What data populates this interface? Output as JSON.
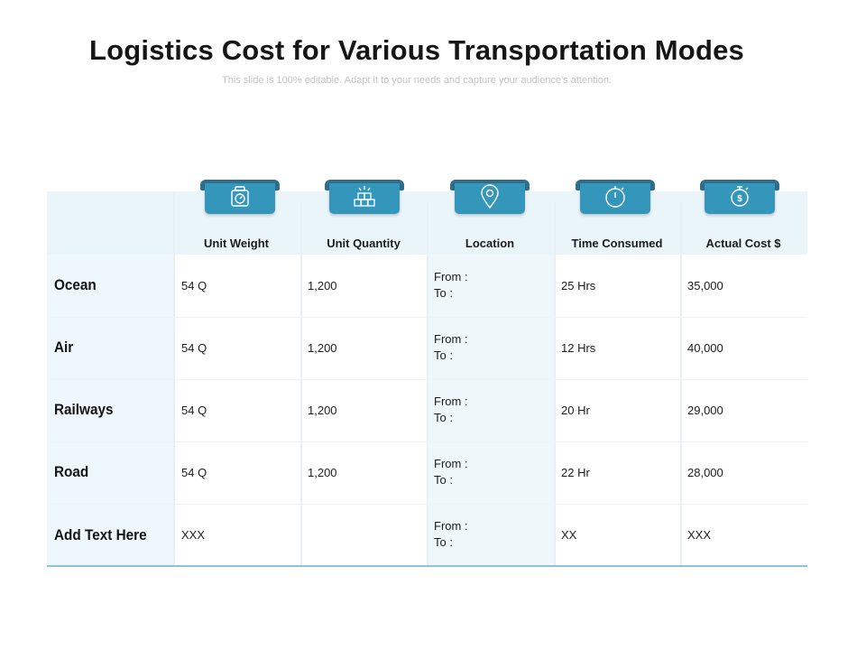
{
  "title": "Logistics Cost for Various Transportation Modes",
  "subtitle": "This slide is 100% editable. Adapt it to your needs and capture your audience's attention.",
  "columns": [
    {
      "label": "Unit Weight",
      "icon": "scale-icon"
    },
    {
      "label": "Unit Quantity",
      "icon": "boxes-icon"
    },
    {
      "label": "Location",
      "icon": "location-pin-icon"
    },
    {
      "label": "Time Consumed",
      "icon": "stopwatch-icon"
    },
    {
      "label": "Actual Cost $",
      "icon": "money-stopwatch-icon"
    }
  ],
  "rows": [
    {
      "label": "Ocean",
      "unit_weight": "54 Q",
      "unit_quantity": "1,200",
      "from": "From :",
      "to": "To :",
      "time": "25 Hrs",
      "cost": "35,000"
    },
    {
      "label": "Air",
      "unit_weight": "54 Q",
      "unit_quantity": "1,200",
      "from": "From :",
      "to": "To :",
      "time": "12 Hrs",
      "cost": "40,000"
    },
    {
      "label": "Railways",
      "unit_weight": "54 Q",
      "unit_quantity": "1,200",
      "from": "From :",
      "to": "To :",
      "time": "20 Hr",
      "cost": "29,000"
    },
    {
      "label": "Road",
      "unit_weight": "54 Q",
      "unit_quantity": "1,200",
      "from": "From :",
      "to": "To :",
      "time": "22 Hr",
      "cost": "28,000"
    },
    {
      "label": "Add Text Here",
      "unit_weight": "XXX",
      "unit_quantity": "",
      "from": "From :",
      "to": "To :",
      "time": "XX",
      "cost": "XXX"
    }
  ],
  "colors": {
    "accent": "#3596bb",
    "accent_dark": "#2f6f8c",
    "header_band": "#eaf5fa",
    "alt_cell": "#eff7fa",
    "bottom_rule": "#8fc3d6"
  }
}
